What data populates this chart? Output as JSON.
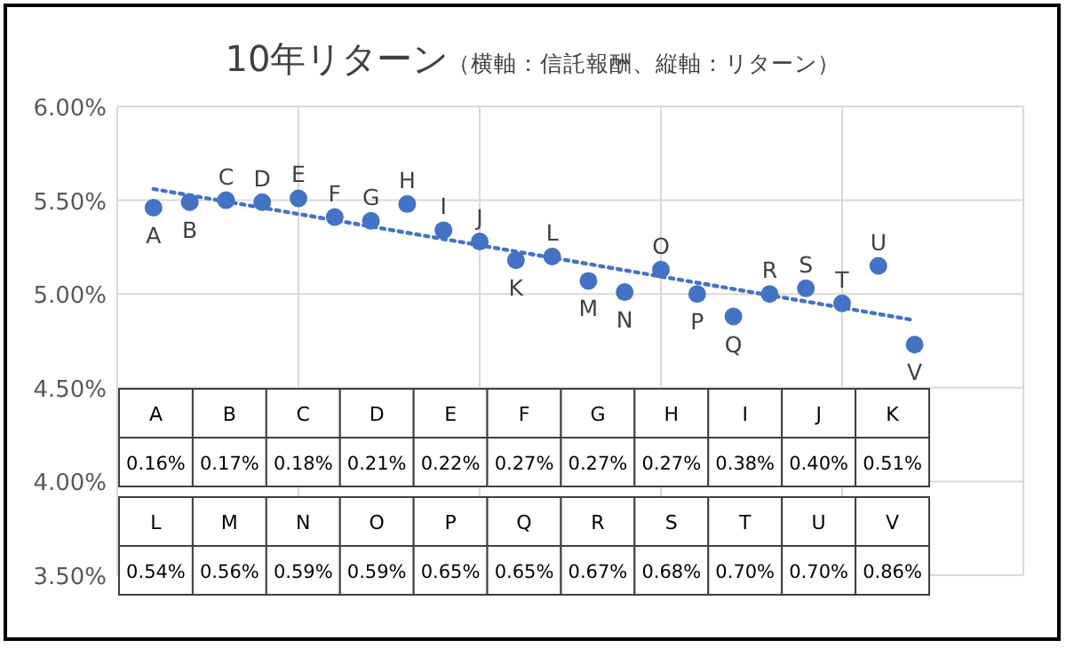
{
  "chart_data": [
    {
      "type": "scatter",
      "title": "10年リターン",
      "subtitle": "（横軸：信託報酬、縦軸：リターン）",
      "grid": true,
      "categories": [
        "A",
        "B",
        "C",
        "D",
        "E",
        "F",
        "G",
        "H",
        "I",
        "J",
        "K",
        "L",
        "M",
        "N",
        "O",
        "P",
        "Q",
        "R",
        "S",
        "T",
        "U",
        "V"
      ],
      "ylim": [
        3.5,
        6.0
      ],
      "yticks": [
        {
          "value": 3.5,
          "label": "3.50%"
        },
        {
          "value": 4.0,
          "label": "4.00%"
        },
        {
          "value": 4.5,
          "label": "4.50%"
        },
        {
          "value": 5.0,
          "label": "5.00%"
        },
        {
          "value": 5.5,
          "label": "5.50%"
        },
        {
          "value": 6.0,
          "label": "6.00%"
        }
      ],
      "series": [
        {
          "color": "#4472c4",
          "marker": "circle",
          "values": [
            5.46,
            5.49,
            5.5,
            5.49,
            5.51,
            5.41,
            5.39,
            5.48,
            5.34,
            5.28,
            5.18,
            5.2,
            5.07,
            5.01,
            5.13,
            5.0,
            4.88,
            5.0,
            5.03,
            4.95,
            5.15,
            4.73
          ]
        },
        {
          "type": "line",
          "color": "#4472c4",
          "line_style": "dotted",
          "x": [
            "A",
            "V"
          ],
          "values": [
            5.56,
            4.86
          ]
        }
      ]
    },
    {
      "type": "other",
      "categories": [
        "A",
        "B",
        "C",
        "D",
        "E",
        "F",
        "G",
        "H",
        "I",
        "J",
        "K",
        "L",
        "M",
        "N",
        "O",
        "P",
        "Q",
        "R",
        "S",
        "T",
        "U",
        "V"
      ],
      "value_labels": [
        "0.16%",
        "0.17%",
        "0.18%",
        "0.21%",
        "0.22%",
        "0.27%",
        "0.27%",
        "0.27%",
        "0.38%",
        "0.40%",
        "0.51%",
        "0.54%",
        "0.56%",
        "0.59%",
        "0.59%",
        "0.65%",
        "0.65%",
        "0.67%",
        "0.68%",
        "0.70%",
        "0.70%",
        "0.86%"
      ]
    }
  ]
}
